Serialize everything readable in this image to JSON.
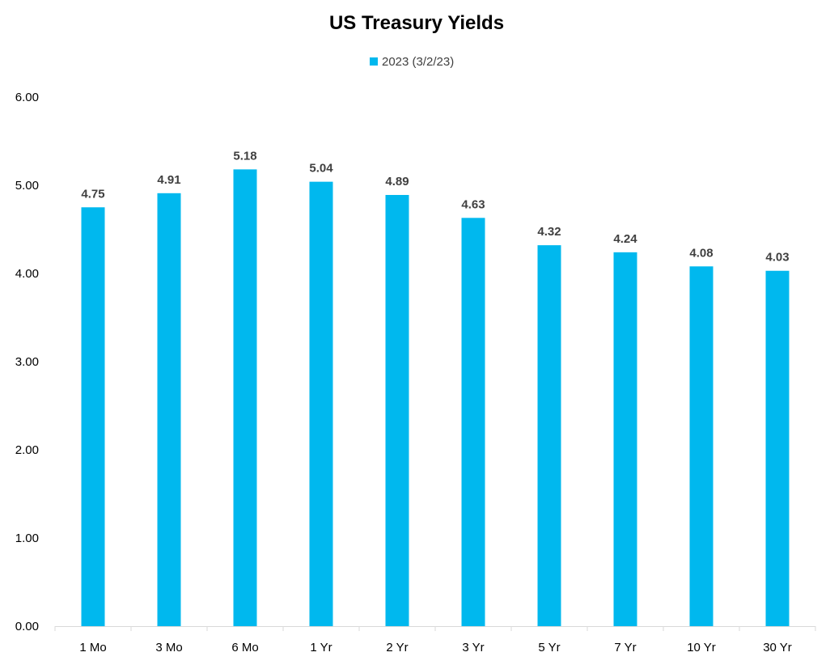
{
  "chart_data": {
    "type": "bar",
    "title": "US Treasury Yields",
    "xlabel": "",
    "ylabel": "",
    "categories": [
      "1 Mo",
      "3 Mo",
      "6 Mo",
      "1 Yr",
      "2 Yr",
      "3 Yr",
      "5 Yr",
      "7 Yr",
      "10 Yr",
      "30 Yr"
    ],
    "series": [
      {
        "name": "2023 (3/2/23)",
        "color": "#00B8EE",
        "values": [
          4.75,
          4.91,
          5.18,
          5.04,
          4.89,
          4.63,
          4.32,
          4.24,
          4.08,
          4.03
        ],
        "labels": [
          "4.75",
          "4.91",
          "5.18",
          "5.04",
          "4.89",
          "4.63",
          "4.32",
          "4.24",
          "4.08",
          "4.03"
        ]
      }
    ],
    "ylim": [
      0,
      6
    ],
    "yticks": [
      0,
      1,
      2,
      3,
      4,
      5,
      6
    ],
    "ytick_labels": [
      "0.00",
      "1.00",
      "2.00",
      "3.00",
      "4.00",
      "5.00",
      "6.00"
    ],
    "grid": false,
    "legend_position": "top-center",
    "data_labels": true
  }
}
